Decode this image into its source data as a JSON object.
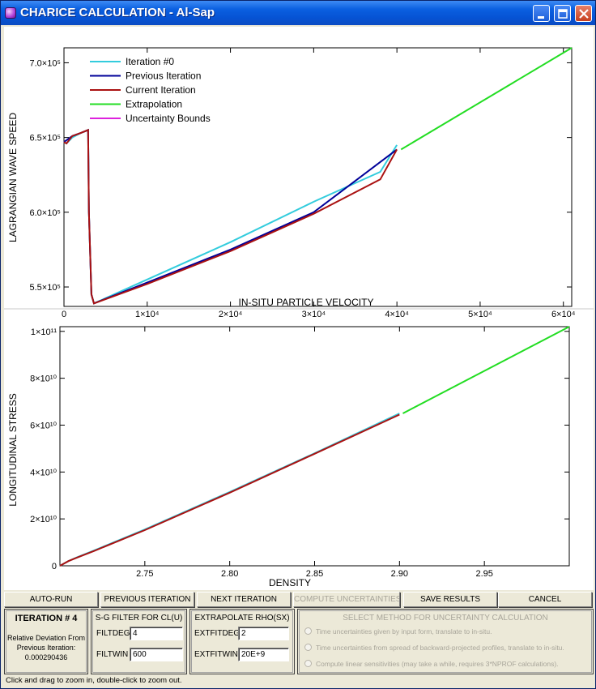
{
  "window": {
    "title": "CHARICE CALCULATION - Al-Sap"
  },
  "chart_data": [
    {
      "type": "line",
      "ylabel": "LAGRANGIAN WAVE SPEED",
      "xlabel": "IN-SITU PARTICLE VELOCITY",
      "xlim": [
        0,
        61000
      ],
      "ylim": [
        537000,
        710000
      ],
      "x_ticks": [
        {
          "value": 0,
          "label": "0"
        },
        {
          "value": 10000,
          "label": "1×10⁴"
        },
        {
          "value": 20000,
          "label": "2×10⁴"
        },
        {
          "value": 30000,
          "label": "3×10⁴"
        },
        {
          "value": 40000,
          "label": "4×10⁴"
        },
        {
          "value": 50000,
          "label": "5×10⁴"
        },
        {
          "value": 60000,
          "label": "6×10⁴"
        }
      ],
      "y_ticks": [
        {
          "value": 550000,
          "label": "5.5×10⁵"
        },
        {
          "value": 600000,
          "label": "6.0×10⁵"
        },
        {
          "value": 650000,
          "label": "6.5×10⁵"
        },
        {
          "value": 700000,
          "label": "7.0×10⁵"
        }
      ],
      "legend": {
        "position": "top-left"
      },
      "series": [
        {
          "name": "Iteration #0",
          "color": "#33CCDD",
          "x": [
            0,
            300,
            1000,
            2000,
            2900,
            3000,
            3300,
            3600,
            10000,
            20000,
            30000,
            38000,
            40000
          ],
          "y": [
            647000,
            646000,
            650000,
            653000,
            655000,
            600000,
            545000,
            539000,
            555000,
            580000,
            607000,
            627000,
            645000
          ]
        },
        {
          "name": "Previous Iteration",
          "color": "#000099",
          "x": [
            0,
            1000,
            2000,
            2900,
            3000,
            3300,
            3600,
            10000,
            20000,
            30000,
            40000
          ],
          "y": [
            647000,
            651000,
            653000,
            655000,
            600000,
            545000,
            539000,
            553000,
            575000,
            600000,
            642000
          ]
        },
        {
          "name": "Current Iteration",
          "color": "#AA1111",
          "x": [
            0,
            300,
            1000,
            2000,
            2900,
            3000,
            3300,
            3600,
            10000,
            20000,
            30000,
            38000,
            40000
          ],
          "y": [
            647000,
            646000,
            651000,
            653000,
            655000,
            600000,
            545000,
            539000,
            552000,
            574000,
            599000,
            622000,
            642000
          ]
        },
        {
          "name": "Extrapolation",
          "color": "#22DD22",
          "x": [
            40500,
            61000
          ],
          "y": [
            642000,
            710000
          ]
        },
        {
          "name": "Uncertainty Bounds",
          "color": "#DD22DD",
          "x": [],
          "y": []
        }
      ]
    },
    {
      "type": "line",
      "ylabel": "LONGITUDINAL STRESS",
      "xlabel": "DENSITY",
      "xlim": [
        2.7,
        3.0
      ],
      "ylim": [
        0,
        102000000000.0
      ],
      "x_ticks": [
        {
          "value": 2.75,
          "label": "2.75"
        },
        {
          "value": 2.8,
          "label": "2.80"
        },
        {
          "value": 2.85,
          "label": "2.85"
        },
        {
          "value": 2.9,
          "label": "2.90"
        },
        {
          "value": 2.95,
          "label": "2.95"
        }
      ],
      "y_ticks": [
        {
          "value": 0,
          "label": "0"
        },
        {
          "value": 20000000000.0,
          "label": "2×10¹⁰"
        },
        {
          "value": 40000000000.0,
          "label": "4×10¹⁰"
        },
        {
          "value": 60000000000.0,
          "label": "6×10¹⁰"
        },
        {
          "value": 80000000000.0,
          "label": "8×10¹⁰"
        },
        {
          "value": 100000000000.0,
          "label": "1×10¹¹"
        }
      ],
      "series": [
        {
          "name": "Iteration #0",
          "color": "#33CCDD",
          "x": [
            2.7,
            2.705,
            2.71,
            2.72,
            2.75,
            2.8,
            2.85,
            2.9
          ],
          "y": [
            0,
            2000000000.0,
            3600000000.0,
            6500000000.0,
            15500000000.0,
            31500000000.0,
            48000000000.0,
            65000000000.0
          ]
        },
        {
          "name": "Current Iteration",
          "color": "#AA1111",
          "x": [
            2.7,
            2.705,
            2.71,
            2.72,
            2.75,
            2.8,
            2.85,
            2.9
          ],
          "y": [
            0,
            2000000000.0,
            3500000000.0,
            6300000000.0,
            15200000000.0,
            31200000000.0,
            47800000000.0,
            64500000000.0
          ]
        },
        {
          "name": "Extrapolation",
          "color": "#22DD22",
          "x": [
            2.902,
            3.0
          ],
          "y": [
            65000000000.0,
            102000000000.0
          ]
        }
      ]
    }
  ],
  "buttons": {
    "auto_run": "AUTO-RUN",
    "previous_iteration": "PREVIOUS ITERATION",
    "next_iteration": "NEXT ITERATION",
    "compute_uncertainties": "COMPUTE UNCERTAINTIES",
    "save_results": "SAVE RESULTS",
    "cancel": "CANCEL"
  },
  "iteration_panel": {
    "title": "ITERATION # 4",
    "line1": "Relative Deviation From",
    "line2": "Previous Iteration:",
    "value": "0.000290436"
  },
  "sg_filter": {
    "title": "S-G FILTER FOR CL(U)",
    "filtdeg_label": "FILTDEG",
    "filtdeg_value": "4",
    "filtwin_label": "FILTWIN",
    "filtwin_value": "600"
  },
  "extrapolate": {
    "title": "EXTRAPOLATE RHO(SX)",
    "extfitdeg_label": "EXTFITDEG",
    "extfitdeg_value": "2",
    "extfitwin_label": "EXTFITWIN",
    "extfitwin_value": "20E+9"
  },
  "uncertainty_method": {
    "title": "SELECT METHOD FOR UNCERTAINTY CALCULATION",
    "options": [
      "Time uncertainties given by input form, translate to in-situ.",
      "Time uncertainties from spread of backward-projected profiles, translate to in-situ.",
      "Compute linear sensitivities (may take a while, requires 3*NPROF calculations)."
    ]
  },
  "status": {
    "text": "Click and drag to zoom in, double-click to zoom out."
  }
}
